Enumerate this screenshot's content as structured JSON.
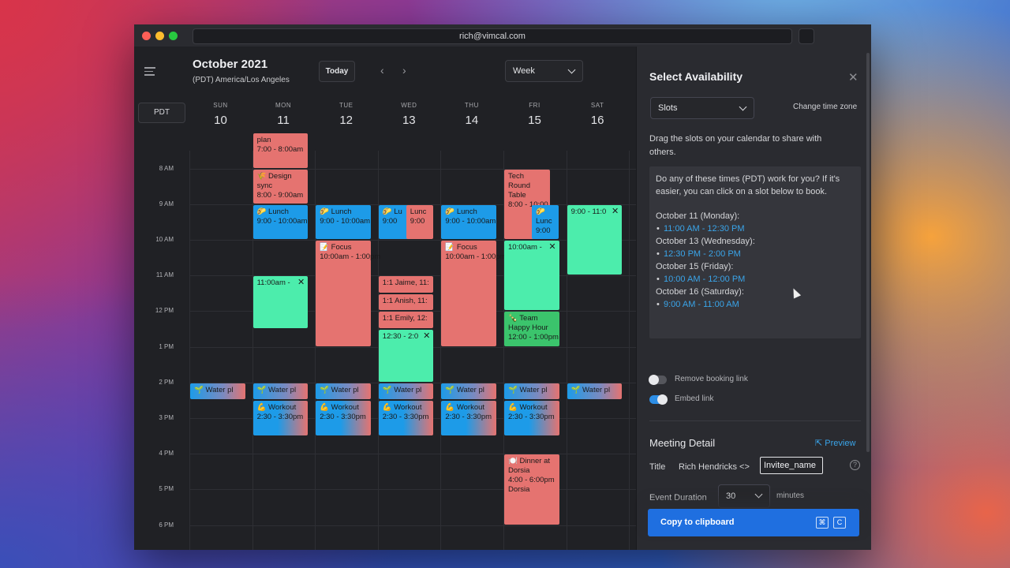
{
  "window": {
    "url": "rich@vimcal.com"
  },
  "calendar": {
    "month": "October 2021",
    "timezone": "(PDT) America/Los Angeles",
    "today_label": "Today",
    "view_label": "Week",
    "tz_button": "PDT",
    "days": [
      {
        "name": "SUN",
        "num": "10"
      },
      {
        "name": "MON",
        "num": "11"
      },
      {
        "name": "TUE",
        "num": "12"
      },
      {
        "name": "WED",
        "num": "13"
      },
      {
        "name": "THU",
        "num": "14"
      },
      {
        "name": "FRI",
        "num": "15"
      },
      {
        "name": "SAT",
        "num": "16"
      }
    ],
    "hours": [
      "8 AM",
      "9 AM",
      "10 AM",
      "11 AM",
      "12 PM",
      "1 PM",
      "2 PM",
      "3 PM",
      "4 PM",
      "5 PM",
      "6 PM"
    ],
    "events": [
      {
        "day": 1,
        "start": 7.0,
        "end": 8.0,
        "color": "red",
        "lines": [
          "plan",
          "7:00 - 8:00am"
        ]
      },
      {
        "day": 1,
        "start": 8.0,
        "end": 9.0,
        "color": "red",
        "lines": [
          "🌾 Design",
          "sync",
          "8:00 - 9:00am"
        ]
      },
      {
        "day": 1,
        "start": 9.0,
        "end": 10.0,
        "color": "blue",
        "lines": [
          "🌮 Lunch",
          "9:00 - 10:00am"
        ]
      },
      {
        "day": 1,
        "start": 11.0,
        "end": 12.5,
        "color": "green",
        "lines": [
          "11:00am -"
        ],
        "close": true
      },
      {
        "day": 2,
        "start": 9.0,
        "end": 10.0,
        "color": "blue",
        "lines": [
          "🌮 Lunch",
          "9:00 - 10:00am"
        ]
      },
      {
        "day": 2,
        "start": 10.0,
        "end": 13.0,
        "color": "red",
        "lines": [
          "📝 Focus",
          "10:00am - 1:00pm"
        ]
      },
      {
        "day": 3,
        "start": 9.0,
        "end": 10.0,
        "color": "blue",
        "lines": [
          "🌮 Lu",
          "9:00"
        ],
        "half": "left"
      },
      {
        "day": 3,
        "start": 9.0,
        "end": 10.0,
        "color": "red",
        "lines": [
          "Lunc",
          "9:00"
        ],
        "half": "right"
      },
      {
        "day": 3,
        "start": 11.0,
        "end": 11.5,
        "color": "red",
        "lines": [
          "1:1 Jaime, 11:"
        ]
      },
      {
        "day": 3,
        "start": 11.5,
        "end": 12.0,
        "color": "red",
        "lines": [
          "1:1 Anish, 11:"
        ]
      },
      {
        "day": 3,
        "start": 12.0,
        "end": 12.5,
        "color": "red",
        "lines": [
          "1:1 Emily, 12:"
        ]
      },
      {
        "day": 3,
        "start": 12.5,
        "end": 14.0,
        "color": "green",
        "lines": [
          "12:30 - 2:0"
        ],
        "close": true
      },
      {
        "day": 4,
        "start": 9.0,
        "end": 10.0,
        "color": "blue",
        "lines": [
          "🌮 Lunch",
          "9:00 - 10:00am"
        ]
      },
      {
        "day": 4,
        "start": 10.0,
        "end": 13.0,
        "color": "red",
        "lines": [
          "📝 Focus",
          "10:00am - 1:00pm"
        ]
      },
      {
        "day": 5,
        "start": 8.0,
        "end": 10.0,
        "color": "red",
        "lines": [
          "Tech",
          "Round",
          "Table",
          "8:00 - 10:00"
        ],
        "half": "left"
      },
      {
        "day": 5,
        "start": 9.0,
        "end": 10.0,
        "color": "blue",
        "lines": [
          "🌮",
          "Lunc",
          "9:00"
        ],
        "half": "right"
      },
      {
        "day": 5,
        "start": 10.0,
        "end": 12.0,
        "color": "green",
        "lines": [
          "10:00am -"
        ],
        "close": true
      },
      {
        "day": 5,
        "start": 12.0,
        "end": 13.0,
        "color": "dgreen",
        "lines": [
          "🍾 Team",
          "Happy Hour",
          "12:00 - 1:00pm"
        ]
      },
      {
        "day": 5,
        "start": 16.0,
        "end": 18.0,
        "color": "red",
        "lines": [
          "🍽️ Dinner at",
          "Dorsia",
          "4:00 - 6:00pm",
          "Dorsia"
        ]
      },
      {
        "day": 6,
        "start": 9.0,
        "end": 11.0,
        "color": "green",
        "lines": [
          "9:00 - 11:0"
        ],
        "close": true
      },
      {
        "day": 0,
        "start": 14.0,
        "end": 14.5,
        "color": "water",
        "lines": [
          "🌱 Water pl"
        ]
      },
      {
        "day": 1,
        "start": 14.0,
        "end": 14.5,
        "color": "water",
        "lines": [
          "🌱 Water pl"
        ]
      },
      {
        "day": 2,
        "start": 14.0,
        "end": 14.5,
        "color": "water",
        "lines": [
          "🌱 Water pl"
        ]
      },
      {
        "day": 3,
        "start": 14.0,
        "end": 14.5,
        "color": "water",
        "lines": [
          "🌱 Water pl"
        ]
      },
      {
        "day": 4,
        "start": 14.0,
        "end": 14.5,
        "color": "water",
        "lines": [
          "🌱 Water pl"
        ]
      },
      {
        "day": 5,
        "start": 14.0,
        "end": 14.5,
        "color": "water",
        "lines": [
          "🌱 Water pl"
        ]
      },
      {
        "day": 6,
        "start": 14.0,
        "end": 14.5,
        "color": "water",
        "lines": [
          "🌱 Water pl"
        ]
      },
      {
        "day": 1,
        "start": 14.5,
        "end": 15.5,
        "color": "workout",
        "lines": [
          "💪 Workout",
          "2:30 - 3:30pm"
        ]
      },
      {
        "day": 2,
        "start": 14.5,
        "end": 15.5,
        "color": "workout",
        "lines": [
          "💪 Workout",
          "2:30 - 3:30pm"
        ]
      },
      {
        "day": 3,
        "start": 14.5,
        "end": 15.5,
        "color": "workout",
        "lines": [
          "💪 Workout",
          "2:30 - 3:30pm"
        ]
      },
      {
        "day": 4,
        "start": 14.5,
        "end": 15.5,
        "color": "workout",
        "lines": [
          "💪 Workout",
          "2:30 - 3:30pm"
        ]
      },
      {
        "day": 5,
        "start": 14.5,
        "end": 15.5,
        "color": "workout",
        "lines": [
          "💪 Workout",
          "2:30 - 3:30pm"
        ]
      }
    ]
  },
  "panel": {
    "title": "Select Availability",
    "close_icon": "close-icon",
    "slots_label": "Slots",
    "change_tz": "Change time zone",
    "drag_text": "Drag the slots on your calendar to share with others.",
    "intro": "Do any of these times (PDT) work for you? If it's easier, you can click on a slot below to book.",
    "availability": [
      {
        "day": "October 11 (Monday):",
        "slot": "11:00 AM - 12:30 PM"
      },
      {
        "day": "October 13 (Wednesday):",
        "slot": "12:30 PM - 2:00 PM"
      },
      {
        "day": "October 15 (Friday):",
        "slot": "10:00 AM - 12:00 PM"
      },
      {
        "day": "October 16 (Saturday):",
        "slot": "9:00 AM - 11:00 AM"
      }
    ],
    "remove_booking_label": "Remove booking link",
    "remove_booking_on": false,
    "embed_link_label": "Embed link",
    "embed_link_on": true,
    "meeting_detail_title": "Meeting Detail",
    "preview_label": "Preview",
    "title_label": "Title",
    "title_prefix": "Rich Hendricks <>",
    "title_input": "Invitee_name",
    "duration_label": "Event Duration",
    "duration_value": "30",
    "minutes_label": "minutes",
    "copy_label": "Copy to clipboard",
    "shortcut": [
      "⌘",
      "C"
    ]
  }
}
